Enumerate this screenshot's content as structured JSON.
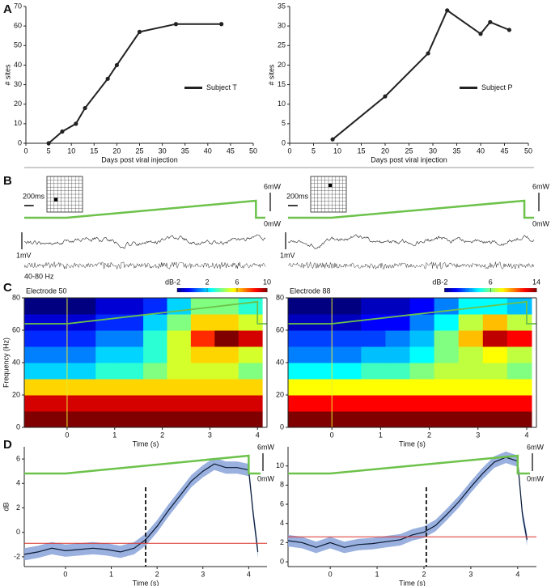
{
  "panel_labels": [
    "A",
    "B",
    "C",
    "D"
  ],
  "chart_data": [
    {
      "type": "line",
      "xlabel": "Days post viral injection",
      "ylabel": "# sites",
      "x": [
        5,
        8,
        11,
        13,
        18,
        20,
        25,
        33,
        43
      ],
      "series": [
        {
          "name": "Subject T",
          "color": "#222222",
          "values": [
            0,
            6,
            10,
            18,
            33,
            40,
            57,
            61,
            61
          ]
        }
      ],
      "xlim": [
        0,
        50
      ],
      "ylim": [
        0,
        70
      ],
      "xticks": [
        0,
        5,
        10,
        15,
        20,
        25,
        30,
        35,
        40,
        45,
        50
      ],
      "yticks": [
        0,
        10,
        20,
        30,
        40,
        50,
        60,
        70
      ],
      "legend": "right"
    },
    {
      "type": "line",
      "xlabel": "Days post viral injection",
      "ylabel": "# sites",
      "x": [
        9,
        20,
        29,
        33,
        40,
        42,
        46
      ],
      "series": [
        {
          "name": "Subject P",
          "color": "#222222",
          "values": [
            1,
            12,
            23,
            34,
            28,
            31,
            29
          ]
        }
      ],
      "xlim": [
        0,
        50
      ],
      "ylim": [
        0,
        35
      ],
      "xticks": [
        0,
        5,
        10,
        15,
        20,
        25,
        30,
        35,
        40,
        45,
        50
      ],
      "yticks": [
        0,
        5,
        10,
        15,
        20,
        25,
        30,
        35
      ],
      "legend": "right"
    },
    {
      "type": "trace",
      "time_scale": "200ms",
      "power_labels": [
        "6mW",
        "0mW"
      ],
      "voltage_scale": "1mV",
      "band": "40-80 Hz",
      "xlim": [
        -0.9,
        4.2
      ],
      "ramp": [
        0,
        4
      ],
      "scale_bar": 0.2
    },
    {
      "type": "trace",
      "time_scale": "200ms",
      "power_labels": [
        "6mW",
        "0mW"
      ],
      "voltage_scale": "1mV",
      "xlim": [
        -0.9,
        4.2
      ],
      "ramp": [
        0,
        4
      ],
      "scale_bar": 0.2
    },
    {
      "type": "heatmap",
      "title": "Electrode 50",
      "xlabel": "Time (s)",
      "ylabel": "Frequency (Hz)",
      "colorbar_label": "dB",
      "xlim": [
        -0.9,
        4.2
      ],
      "ylim": [
        0,
        80
      ],
      "xticks": [
        0,
        1,
        2,
        3,
        4
      ],
      "yticks": [
        0,
        20,
        40,
        60,
        80
      ],
      "clim": [
        -2,
        10
      ],
      "cticks": [
        -2,
        2,
        6,
        10
      ],
      "ramp": [
        0,
        4
      ],
      "x": [
        -0.65,
        -0.15,
        0.35,
        0.85,
        1.35,
        1.85,
        2.35,
        2.85,
        3.35,
        3.85
      ],
      "y": [
        5,
        15,
        25,
        35,
        45,
        55,
        65,
        75
      ],
      "z": [
        [
          10,
          10,
          10,
          10,
          10,
          10,
          10,
          10,
          10,
          10
        ],
        [
          9,
          9,
          9,
          9,
          9,
          9,
          9,
          9,
          9,
          9
        ],
        [
          6,
          6,
          6,
          6,
          6,
          6,
          6,
          6,
          6,
          6
        ],
        [
          2,
          2,
          2,
          3,
          3,
          4,
          5,
          5,
          5,
          4
        ],
        [
          1,
          1,
          1,
          2,
          2,
          3,
          5,
          6,
          6,
          5
        ],
        [
          0,
          0,
          0,
          1,
          1,
          3,
          5,
          8,
          10,
          9
        ],
        [
          -1,
          -1,
          -1,
          0,
          0,
          2,
          4,
          6,
          6,
          5
        ],
        [
          -2,
          -2,
          -2,
          -1,
          -1,
          0,
          2,
          4,
          4,
          3
        ]
      ]
    },
    {
      "type": "heatmap",
      "title": "Electrode 88",
      "xlabel": "Time (s)",
      "colorbar_label": "dB",
      "xlim": [
        -0.9,
        4.2
      ],
      "ylim": [
        0,
        80
      ],
      "xticks": [
        0,
        1,
        2,
        3,
        4
      ],
      "yticks": [
        0,
        20,
        40,
        60,
        80
      ],
      "clim": [
        -2,
        14
      ],
      "cticks": [
        -2,
        6,
        14
      ],
      "ramp": [
        0,
        4
      ],
      "x": [
        -0.65,
        -0.15,
        0.35,
        0.85,
        1.35,
        1.85,
        2.35,
        2.85,
        3.35,
        3.85
      ],
      "y": [
        5,
        15,
        25,
        35,
        45,
        55,
        65,
        75
      ],
      "z": [
        [
          14,
          14,
          14,
          14,
          14,
          14,
          14,
          14,
          14,
          14
        ],
        [
          12,
          12,
          12,
          12,
          12,
          12,
          12,
          12,
          12,
          12
        ],
        [
          8,
          8,
          8,
          8,
          8,
          8,
          8,
          8,
          8,
          8
        ],
        [
          4,
          4,
          4,
          5,
          5,
          6,
          7,
          7,
          7,
          6
        ],
        [
          2,
          2,
          2,
          3,
          3,
          4,
          6,
          7,
          8,
          7
        ],
        [
          1,
          1,
          1,
          1,
          2,
          3,
          6,
          9,
          13,
          12
        ],
        [
          -1,
          -1,
          -1,
          0,
          0,
          2,
          4,
          7,
          9,
          7
        ],
        [
          -2,
          -2,
          -2,
          -1,
          -1,
          0,
          2,
          4,
          4,
          3
        ]
      ]
    },
    {
      "type": "signal",
      "xlabel": "Time (s)",
      "ylabel": "dB",
      "power_labels": [
        "6mW",
        "0mW"
      ],
      "ramp": [
        0,
        4
      ],
      "xlim": [
        -0.9,
        4.4
      ],
      "ylim": [
        -2.8,
        7
      ],
      "xticks": [
        0,
        1,
        2,
        3,
        4
      ],
      "yticks": [
        -2,
        0,
        2,
        4,
        6
      ],
      "threshold": -0.9,
      "onset": 1.75,
      "x": [
        -0.9,
        -0.6,
        -0.3,
        0,
        0.3,
        0.6,
        0.9,
        1.2,
        1.5,
        1.75,
        2.0,
        2.25,
        2.5,
        2.75,
        3.0,
        3.25,
        3.5,
        3.75,
        4.0,
        4.1,
        4.2
      ],
      "series": [
        {
          "color": "#0b1a33",
          "values": [
            -1.8,
            -1.6,
            -1.3,
            -1.5,
            -1.4,
            -1.3,
            -1.4,
            -1.6,
            -1.3,
            -0.6,
            0.5,
            1.8,
            3.0,
            4.2,
            5.0,
            5.6,
            5.3,
            5.3,
            5.1,
            1.5,
            -1.6
          ],
          "errors": [
            0.5,
            0.5,
            0.5,
            0.5,
            0.5,
            0.5,
            0.5,
            0.5,
            0.5,
            0.5,
            0.5,
            0.5,
            0.5,
            0.5,
            0.5,
            0.5,
            0.5,
            0.5,
            0.5,
            0.5,
            0.5
          ]
        }
      ]
    },
    {
      "type": "signal",
      "xlabel": "Time (s)",
      "power_labels": [
        "6mW",
        "0mW"
      ],
      "ramp": [
        0,
        4
      ],
      "xlim": [
        -0.9,
        4.4
      ],
      "ylim": [
        -0.5,
        12
      ],
      "xticks": [
        0,
        1,
        2,
        3,
        4
      ],
      "yticks": [
        0,
        2,
        4,
        6,
        8,
        10
      ],
      "threshold": 2.6,
      "onset": 2.05,
      "x": [
        -0.9,
        -0.6,
        -0.3,
        0,
        0.3,
        0.6,
        0.9,
        1.2,
        1.5,
        1.75,
        2.0,
        2.25,
        2.5,
        2.75,
        3.0,
        3.25,
        3.5,
        3.75,
        4.0,
        4.1,
        4.2
      ],
      "series": [
        {
          "color": "#0b1a33",
          "values": [
            2.2,
            2.0,
            1.5,
            2.0,
            1.5,
            1.8,
            1.9,
            2.1,
            2.3,
            2.8,
            3.1,
            3.8,
            5.0,
            6.3,
            7.8,
            9.2,
            10.4,
            10.9,
            10.5,
            5.0,
            2.3
          ],
          "errors": [
            0.6,
            0.6,
            0.6,
            0.6,
            0.6,
            0.6,
            0.6,
            0.6,
            0.6,
            0.6,
            0.6,
            0.6,
            0.6,
            0.6,
            0.6,
            0.6,
            0.6,
            0.6,
            0.6,
            0.6,
            0.6
          ]
        }
      ]
    }
  ]
}
